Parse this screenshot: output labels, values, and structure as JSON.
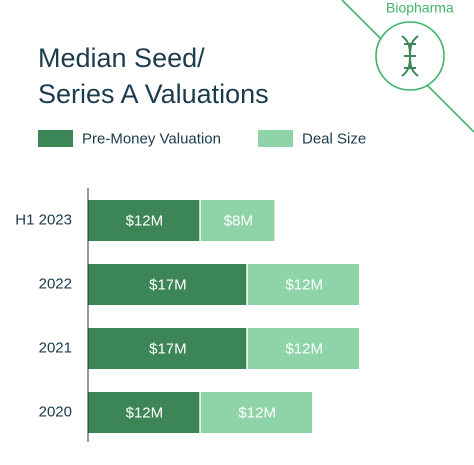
{
  "badge": "Biopharma",
  "chart_data": {
    "type": "stacked-bar-horizontal",
    "title": [
      "Median Seed/",
      "Series A Valuations"
    ],
    "categories": [
      "H1 2023",
      "2022",
      "2021",
      "2020"
    ],
    "series": [
      {
        "name": "Pre-Money Valuation",
        "color": "#3b8557",
        "values": [
          12,
          17,
          17,
          12
        ],
        "value_labels": [
          "$12M",
          "$17M",
          "$17M",
          "$12M"
        ]
      },
      {
        "name": "Deal Size",
        "color": "#8fd3a9",
        "values": [
          8,
          12,
          12,
          12
        ],
        "value_labels": [
          "$8M",
          "$12M",
          "$12M",
          "$12M"
        ]
      }
    ]
  }
}
